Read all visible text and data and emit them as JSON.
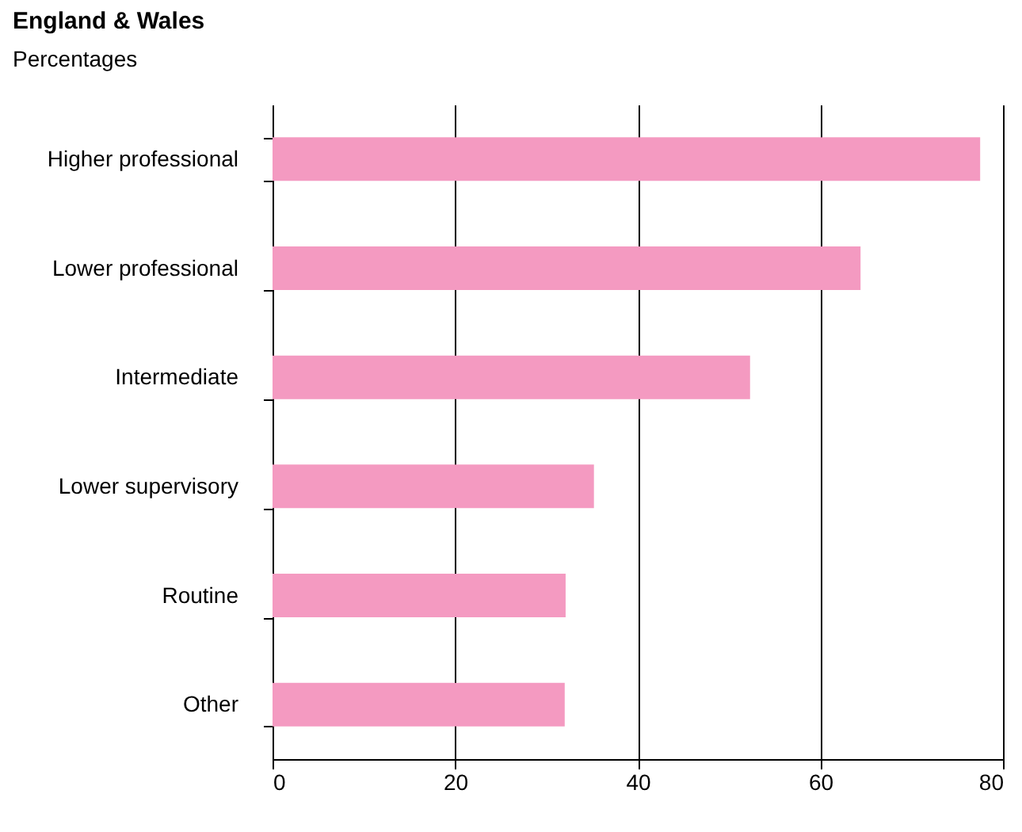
{
  "chart_data": {
    "type": "bar",
    "orientation": "horizontal",
    "title": "England & Wales",
    "subtitle": "Percentages",
    "categories": [
      "Higher professional",
      "Lower professional",
      "Intermediate",
      "Lower supervisory",
      "Routine",
      "Other"
    ],
    "values": [
      77.5,
      64.4,
      52.3,
      35.2,
      32.1,
      32.0
    ],
    "color": "#f49ac1",
    "xlim": [
      0,
      80
    ],
    "xticks": [
      0,
      20,
      40,
      60,
      80
    ],
    "grid": "x"
  }
}
